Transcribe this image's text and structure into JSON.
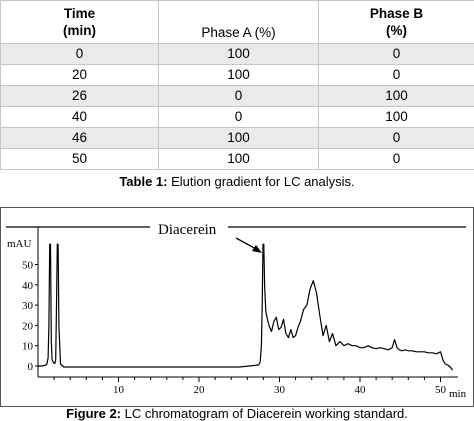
{
  "table": {
    "headers": {
      "time": {
        "line1": "Time",
        "line2": "(min)"
      },
      "phase_a": "Phase A (%)",
      "phase_b": {
        "line1": "Phase B",
        "line2": "(%)"
      }
    },
    "rows": [
      [
        "0",
        "100",
        "0"
      ],
      [
        "20",
        "100",
        "0"
      ],
      [
        "26",
        "0",
        "100"
      ],
      [
        "40",
        "0",
        "100"
      ],
      [
        "46",
        "100",
        "0"
      ],
      [
        "50",
        "100",
        "0"
      ]
    ]
  },
  "table_caption": {
    "label": "Table 1:",
    "text": " Elution gradient for LC analysis."
  },
  "figure_caption": {
    "label": "Figure 2:",
    "text": " LC chromatogram of Diacerein working standard."
  },
  "chart_data": {
    "type": "line",
    "annotation": "Diacerein",
    "ylabel": "mAU",
    "xlabel": "min",
    "xlim": [
      0,
      52
    ],
    "ylim": [
      -2,
      60
    ],
    "y_ticks": [
      "0",
      "10",
      "20",
      "30",
      "40",
      "50"
    ],
    "x_ticks": [
      "10",
      "20",
      "30",
      "40",
      "50"
    ],
    "series": [
      {
        "color": "#000000",
        "x": [
          0,
          0.5,
          0.9,
          1.1,
          1.25,
          1.35,
          1.45,
          1.55,
          1.65,
          1.75,
          1.95,
          2.1,
          2.2,
          2.3,
          2.4,
          2.5,
          2.6,
          2.8,
          3.2,
          5,
          10,
          15,
          20,
          25,
          27.4,
          27.6,
          27.75,
          27.85,
          27.95,
          28.05,
          28.15,
          28.3,
          28.5,
          28.7,
          29.0,
          29.3,
          29.6,
          29.9,
          30.2,
          30.5,
          30.8,
          31.1,
          31.4,
          31.7,
          32.0,
          32.3,
          32.6,
          33.0,
          33.4,
          33.8,
          34.2,
          34.6,
          35.0,
          35.4,
          35.8,
          36.2,
          36.6,
          37.0,
          37.5,
          38.0,
          38.5,
          39.0,
          39.5,
          40.0,
          40.5,
          41.0,
          41.5,
          42.0,
          42.5,
          43.0,
          43.5,
          44.0,
          44.3,
          44.6,
          44.9,
          45.2,
          45.6,
          46.0,
          46.5,
          47.0,
          47.5,
          48.0,
          48.5,
          49.0,
          49.5,
          50.0,
          50.3,
          50.6,
          50.9,
          51.2,
          51.5
        ],
        "y": [
          0,
          0,
          0.3,
          1,
          4,
          20,
          60,
          60,
          12,
          3,
          1.5,
          1.3,
          3,
          30,
          60,
          60,
          20,
          1,
          -0.5,
          -0.5,
          -0.5,
          -0.5,
          -0.5,
          -0.5,
          0.5,
          2,
          10,
          30,
          60,
          60,
          40,
          27,
          23,
          20,
          17,
          22,
          24,
          18,
          19,
          23,
          16,
          14,
          18,
          14,
          15,
          19,
          22,
          28,
          30,
          38,
          42,
          36,
          25,
          15,
          20,
          12,
          16,
          10,
          12,
          10,
          11,
          10,
          10,
          9,
          9,
          10,
          9,
          8.5,
          9,
          8.5,
          8,
          9,
          13,
          9,
          8,
          7.5,
          8,
          7.5,
          7.5,
          7,
          7,
          7,
          6.5,
          6.5,
          6,
          7,
          3,
          1,
          0.5,
          -0.5,
          -2
        ]
      }
    ]
  }
}
